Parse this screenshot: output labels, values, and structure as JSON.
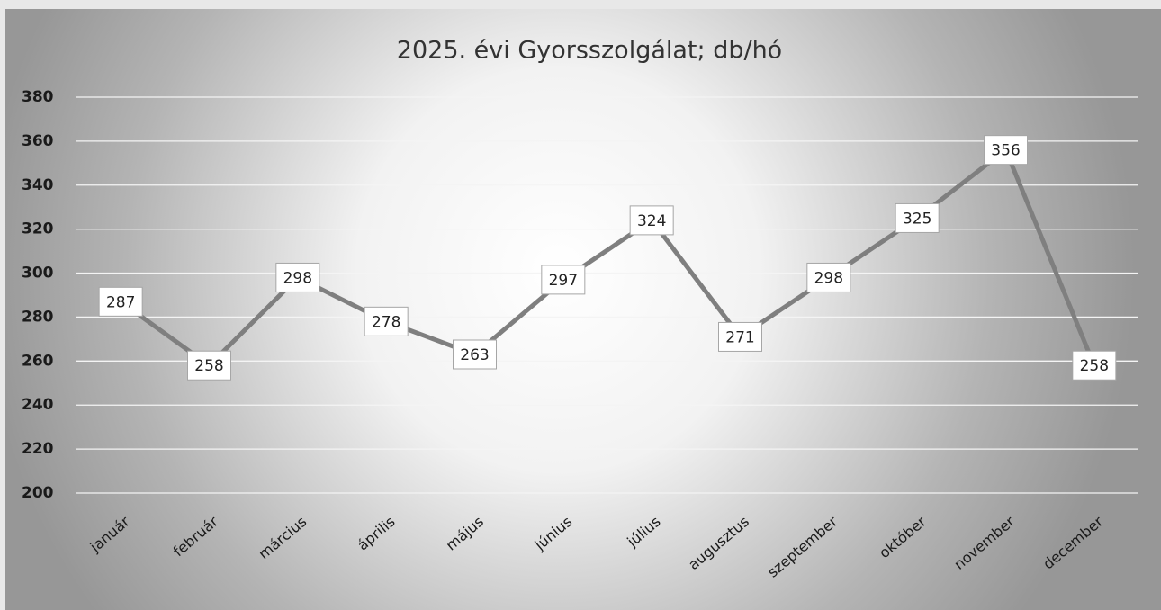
{
  "chart_data": {
    "type": "line",
    "title": "2025. évi Gyorsszolgálat; db/hó",
    "categories": [
      "január",
      "február",
      "március",
      "április",
      "május",
      "június",
      "július",
      "augusztus",
      "szeptember",
      "október",
      "november",
      "december"
    ],
    "values": [
      287,
      258,
      298,
      278,
      263,
      297,
      324,
      271,
      298,
      325,
      356,
      258
    ],
    "color": "#7f7f7f",
    "ylim": [
      200,
      380
    ],
    "yticks": [
      200,
      220,
      240,
      260,
      280,
      300,
      320,
      340,
      360,
      380
    ],
    "grid": true
  }
}
